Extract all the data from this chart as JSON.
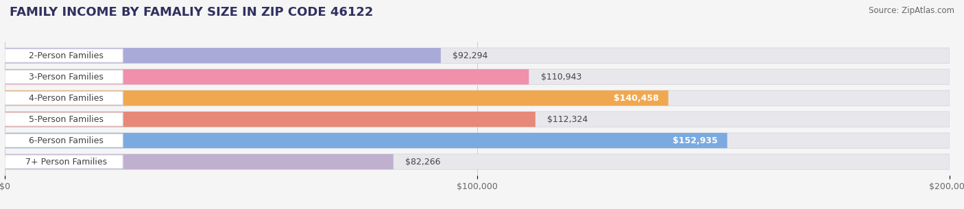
{
  "title": "FAMILY INCOME BY FAMALIY SIZE IN ZIP CODE 46122",
  "source": "Source: ZipAtlas.com",
  "categories": [
    "2-Person Families",
    "3-Person Families",
    "4-Person Families",
    "5-Person Families",
    "6-Person Families",
    "7+ Person Families"
  ],
  "values": [
    92294,
    110943,
    140458,
    112324,
    152935,
    82266
  ],
  "bar_colors": [
    "#aaaad8",
    "#f090aa",
    "#f0a850",
    "#e88878",
    "#7aaae0",
    "#c0b0d0"
  ],
  "value_labels": [
    "$92,294",
    "$110,943",
    "$140,458",
    "$112,324",
    "$152,935",
    "$82,266"
  ],
  "value_inside": [
    false,
    false,
    true,
    false,
    true,
    false
  ],
  "xlim": [
    0,
    200000
  ],
  "xticks": [
    0,
    100000,
    200000
  ],
  "xtick_labels": [
    "$0",
    "$100,000",
    "$200,000"
  ],
  "background_color": "#f5f5f5",
  "bar_background_color": "#e8e8ec",
  "label_pill_color": "#ffffff",
  "title_fontsize": 13,
  "label_fontsize": 9,
  "value_fontsize": 9,
  "source_fontsize": 8.5
}
